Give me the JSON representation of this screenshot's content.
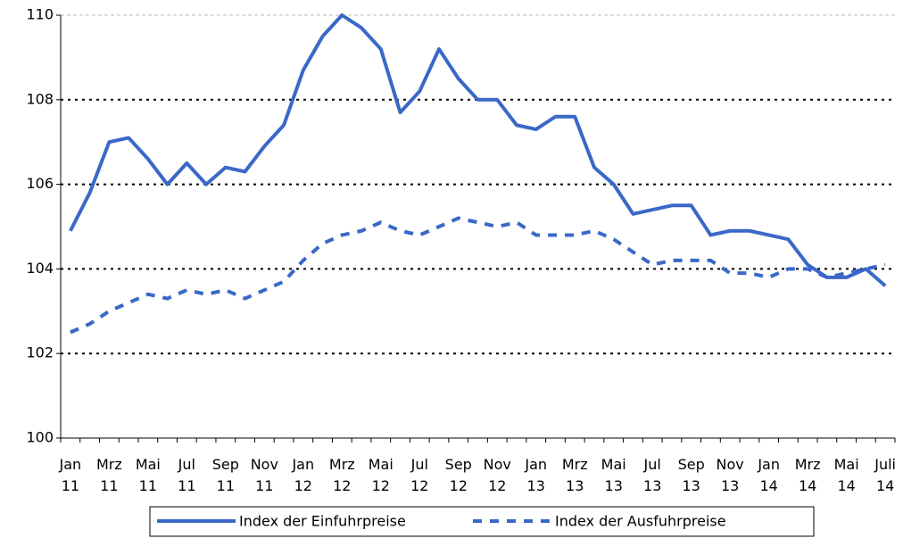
{
  "chart_data": {
    "type": "line",
    "categories": [
      [
        "Jan",
        "11"
      ],
      null,
      [
        "Mrz",
        "11"
      ],
      null,
      [
        "Mai",
        "11"
      ],
      null,
      [
        "Jul",
        "11"
      ],
      null,
      [
        "Sep",
        "11"
      ],
      null,
      [
        "Nov",
        "11"
      ],
      null,
      [
        "Jan",
        "12"
      ],
      null,
      [
        "Mrz",
        "12"
      ],
      null,
      [
        "Mai",
        "12"
      ],
      null,
      [
        "Jul",
        "12"
      ],
      null,
      [
        "Sep",
        "12"
      ],
      null,
      [
        "Nov",
        "12"
      ],
      null,
      [
        "Jan",
        "13"
      ],
      null,
      [
        "Mrz",
        "13"
      ],
      null,
      [
        "Mai",
        "13"
      ],
      null,
      [
        "Jul",
        "13"
      ],
      null,
      [
        "Sep",
        "13"
      ],
      null,
      [
        "Nov",
        "13"
      ],
      null,
      [
        "Jan",
        "14"
      ],
      null,
      [
        "Mrz",
        "14"
      ],
      null,
      [
        "Mai",
        "14"
      ],
      null,
      [
        "Juli",
        "14"
      ]
    ],
    "series": [
      {
        "name": "Index der Einfuhrpreise",
        "color": "#3a68c8",
        "style": "solid",
        "values": [
          104.9,
          105.8,
          107.0,
          107.1,
          106.6,
          106.0,
          106.5,
          106.0,
          106.4,
          106.3,
          106.9,
          107.4,
          108.7,
          109.5,
          110.0,
          109.7,
          109.2,
          107.7,
          108.2,
          109.2,
          108.5,
          108.0,
          108.0,
          107.4,
          107.3,
          107.6,
          107.6,
          106.4,
          106.0,
          105.3,
          105.4,
          105.5,
          105.5,
          104.8,
          104.9,
          104.9,
          104.8,
          104.7,
          104.1,
          103.8,
          103.8,
          104.0,
          103.6
        ]
      },
      {
        "name": "Index der Ausfuhrpreise",
        "color": "#3a68c8",
        "style": "dashed",
        "values": [
          102.5,
          102.7,
          103.0,
          103.2,
          103.4,
          103.3,
          103.5,
          103.4,
          103.5,
          103.3,
          103.5,
          103.7,
          104.2,
          104.6,
          104.8,
          104.9,
          105.1,
          104.9,
          104.8,
          105.0,
          105.2,
          105.1,
          105.0,
          105.1,
          104.8,
          104.8,
          104.8,
          104.9,
          104.7,
          104.4,
          104.1,
          104.2,
          104.2,
          104.2,
          103.9,
          103.9,
          103.8,
          104.0,
          104.0,
          103.8,
          103.9,
          104.0,
          104.1
        ]
      }
    ],
    "ylim": [
      100,
      110
    ],
    "yticks": [
      100,
      102,
      104,
      106,
      108,
      110
    ],
    "grid": true
  }
}
